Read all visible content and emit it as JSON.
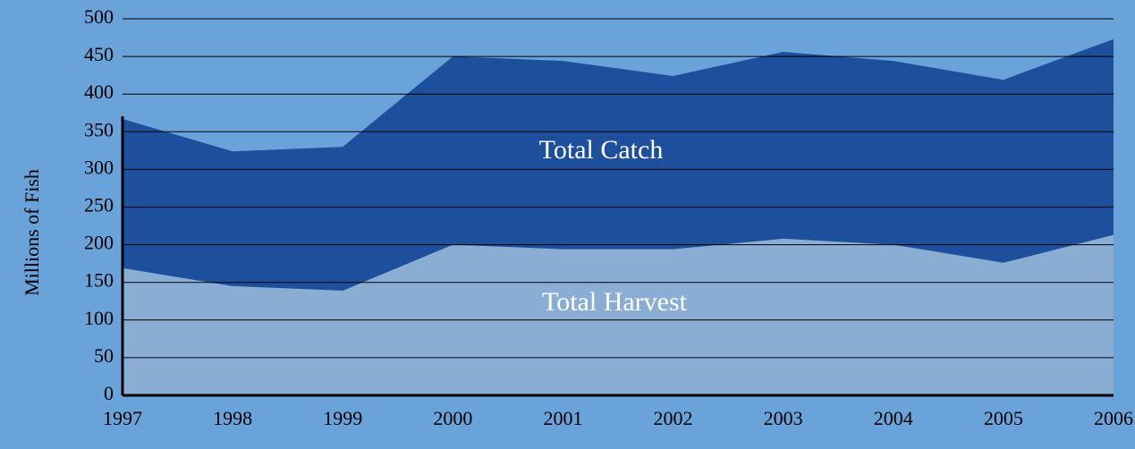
{
  "chart_data": {
    "type": "area",
    "y_label": "Millions of Fish",
    "categories": [
      "1997",
      "1998",
      "1999",
      "2000",
      "2001",
      "2002",
      "2003",
      "2004",
      "2005",
      "2006"
    ],
    "series": [
      {
        "name": "Total Catch",
        "color": "#1d4f9c",
        "values": [
          367,
          324,
          330,
          450,
          444,
          424,
          456,
          444,
          419,
          473
        ]
      },
      {
        "name": "Total Harvest",
        "color": "#8aaed3",
        "values": [
          169,
          145,
          139,
          200,
          194,
          194,
          208,
          200,
          176,
          213
        ]
      }
    ],
    "ylim": [
      0,
      500
    ],
    "yticks": [
      0,
      50,
      100,
      150,
      200,
      250,
      300,
      350,
      400,
      450,
      500
    ],
    "grid": true
  }
}
